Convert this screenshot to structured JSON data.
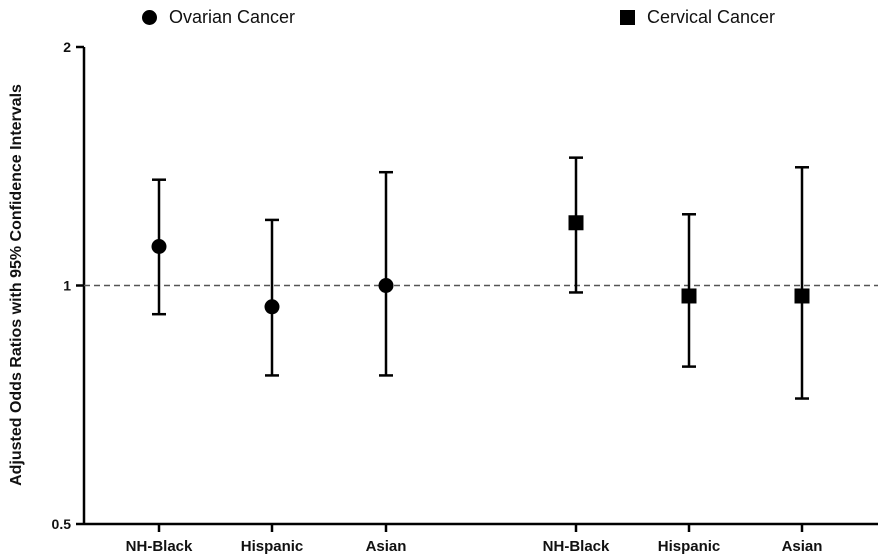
{
  "chart_data": {
    "type": "scatter",
    "ylabel": "Adjusted Odds Ratios with  95% Confidence Intervals",
    "xlabel": "",
    "y_scale": "log",
    "ylim": [
      0.5,
      2
    ],
    "yticks": [
      {
        "value": 0.5,
        "label": "0.5"
      },
      {
        "value": 1,
        "label": "1"
      },
      {
        "value": 2,
        "label": "2"
      }
    ],
    "reference_line": {
      "value": 1,
      "style": "dashed"
    },
    "categories": [
      "NH-Black",
      "Hispanic",
      "Asian",
      "NH-Black",
      "Hispanic",
      "Asian"
    ],
    "legend_position": "top",
    "series": [
      {
        "name": "Ovarian Cancer",
        "marker": "circle",
        "points": [
          {
            "label": "NH-Black",
            "or": 1.12,
            "lower": 0.92,
            "upper": 1.36
          },
          {
            "label": "Hispanic",
            "or": 0.94,
            "lower": 0.77,
            "upper": 1.21
          },
          {
            "label": "Asian",
            "or": 1.0,
            "lower": 0.77,
            "upper": 1.39
          }
        ]
      },
      {
        "name": "Cervical Cancer",
        "marker": "square",
        "points": [
          {
            "label": "NH-Black",
            "or": 1.2,
            "lower": 0.98,
            "upper": 1.45
          },
          {
            "label": "Hispanic",
            "or": 0.97,
            "lower": 0.79,
            "upper": 1.23
          },
          {
            "label": "Asian",
            "or": 0.97,
            "lower": 0.72,
            "upper": 1.41
          }
        ]
      }
    ]
  }
}
